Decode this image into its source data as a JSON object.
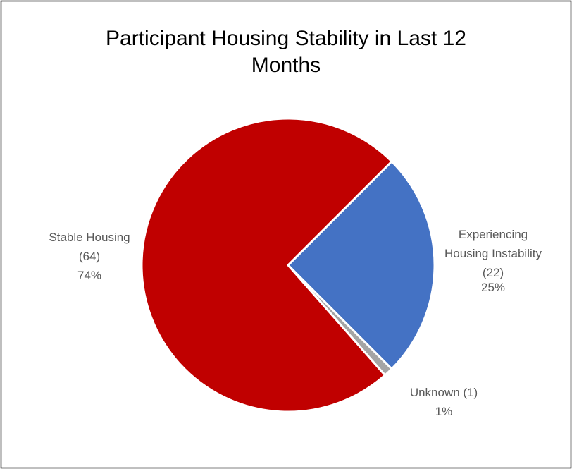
{
  "chart_data": {
    "type": "pie",
    "title": "Participant Housing Stability in Last 12 Months",
    "categories": [
      "Experiencing Housing Instability (22)",
      "Unknown (1)",
      "Stable Housing (64)"
    ],
    "values": [
      25,
      1,
      74
    ],
    "value_labels": [
      "25%",
      "1%",
      "74%"
    ],
    "colors": [
      "#4472c4",
      "#a5a5a5",
      "#c00000"
    ]
  }
}
